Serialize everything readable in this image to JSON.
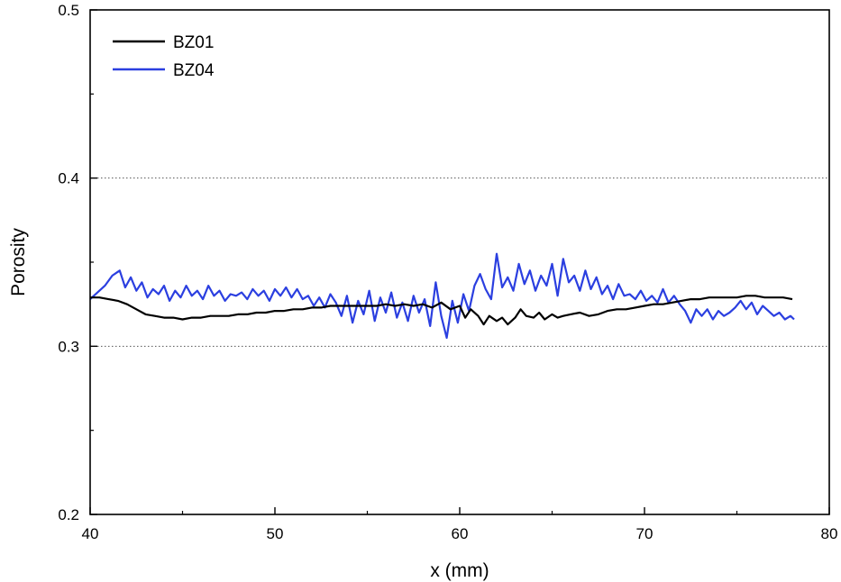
{
  "chart_data": {
    "type": "line",
    "title": "",
    "xlabel": "x (mm)",
    "ylabel": "Porosity",
    "xlim": [
      40,
      80
    ],
    "ylim": [
      0.2,
      0.5
    ],
    "x_ticks": [
      40,
      50,
      60,
      70,
      80
    ],
    "y_ticks": [
      0.2,
      0.3,
      0.4,
      0.5
    ],
    "x_tick_labels": [
      "40",
      "50",
      "60",
      "70",
      "80"
    ],
    "y_tick_labels": [
      "0.2",
      "0.3",
      "0.4",
      "0.5"
    ],
    "grid": "dotted horizontal at 0.3 and 0.4",
    "legend_position": "top-left",
    "series": [
      {
        "name": "BZ01",
        "color": "#000000",
        "x": [
          40.0,
          40.5,
          41.0,
          41.5,
          42.0,
          42.5,
          43.0,
          43.5,
          44.0,
          44.5,
          45.0,
          45.5,
          46.0,
          46.5,
          47.0,
          47.5,
          48.0,
          48.5,
          49.0,
          49.5,
          50.0,
          50.5,
          51.0,
          51.5,
          52.0,
          52.5,
          53.0,
          53.5,
          54.0,
          54.5,
          55.0,
          55.5,
          56.0,
          56.5,
          57.0,
          57.5,
          58.0,
          58.5,
          59.0,
          59.5,
          60.0,
          60.3,
          60.6,
          61.0,
          61.3,
          61.6,
          62.0,
          62.3,
          62.6,
          63.0,
          63.3,
          63.6,
          64.0,
          64.3,
          64.6,
          65.0,
          65.3,
          65.6,
          66.0,
          66.5,
          67.0,
          67.5,
          68.0,
          68.5,
          69.0,
          69.5,
          70.0,
          70.5,
          71.0,
          71.5,
          72.0,
          72.5,
          73.0,
          73.5,
          74.0,
          74.5,
          75.0,
          75.5,
          76.0,
          76.5,
          77.0,
          77.5,
          78.0
        ],
        "y": [
          0.329,
          0.329,
          0.328,
          0.327,
          0.325,
          0.322,
          0.319,
          0.318,
          0.317,
          0.317,
          0.316,
          0.317,
          0.317,
          0.318,
          0.318,
          0.318,
          0.319,
          0.319,
          0.32,
          0.32,
          0.321,
          0.321,
          0.322,
          0.322,
          0.323,
          0.323,
          0.324,
          0.324,
          0.324,
          0.324,
          0.324,
          0.324,
          0.325,
          0.324,
          0.325,
          0.324,
          0.325,
          0.323,
          0.326,
          0.322,
          0.324,
          0.317,
          0.322,
          0.318,
          0.313,
          0.318,
          0.315,
          0.317,
          0.313,
          0.317,
          0.322,
          0.318,
          0.317,
          0.32,
          0.316,
          0.319,
          0.317,
          0.318,
          0.319,
          0.32,
          0.318,
          0.319,
          0.321,
          0.322,
          0.322,
          0.323,
          0.324,
          0.325,
          0.325,
          0.326,
          0.327,
          0.328,
          0.328,
          0.329,
          0.329,
          0.329,
          0.329,
          0.33,
          0.33,
          0.329,
          0.329,
          0.329,
          0.328
        ]
      },
      {
        "name": "BZ04",
        "color": "#2b3fe0",
        "x": [
          40.0,
          40.4,
          40.8,
          41.2,
          41.6,
          41.9,
          42.2,
          42.5,
          42.8,
          43.1,
          43.4,
          43.7,
          44.0,
          44.3,
          44.6,
          44.9,
          45.2,
          45.5,
          45.8,
          46.1,
          46.4,
          46.7,
          47.0,
          47.3,
          47.6,
          47.9,
          48.2,
          48.5,
          48.8,
          49.1,
          49.4,
          49.7,
          50.0,
          50.3,
          50.6,
          50.9,
          51.2,
          51.5,
          51.8,
          52.1,
          52.4,
          52.7,
          53.0,
          53.3,
          53.6,
          53.9,
          54.2,
          54.5,
          54.8,
          55.1,
          55.4,
          55.7,
          56.0,
          56.3,
          56.6,
          56.9,
          57.2,
          57.5,
          57.8,
          58.1,
          58.4,
          58.7,
          59.0,
          59.3,
          59.6,
          59.9,
          60.2,
          60.5,
          60.8,
          61.1,
          61.4,
          61.7,
          62.0,
          62.3,
          62.6,
          62.9,
          63.2,
          63.5,
          63.8,
          64.1,
          64.4,
          64.7,
          65.0,
          65.3,
          65.6,
          65.9,
          66.2,
          66.5,
          66.8,
          67.1,
          67.4,
          67.7,
          68.0,
          68.3,
          68.6,
          68.9,
          69.2,
          69.5,
          69.8,
          70.1,
          70.4,
          70.7,
          71.0,
          71.3,
          71.6,
          71.9,
          72.2,
          72.5,
          72.8,
          73.1,
          73.4,
          73.7,
          74.0,
          74.3,
          74.6,
          74.9,
          75.2,
          75.5,
          75.8,
          76.1,
          76.4,
          76.7,
          77.0,
          77.3,
          77.6,
          77.9,
          78.1
        ],
        "y": [
          0.328,
          0.332,
          0.336,
          0.342,
          0.345,
          0.335,
          0.341,
          0.333,
          0.338,
          0.329,
          0.334,
          0.331,
          0.336,
          0.327,
          0.333,
          0.329,
          0.336,
          0.33,
          0.333,
          0.328,
          0.336,
          0.33,
          0.333,
          0.327,
          0.331,
          0.33,
          0.332,
          0.328,
          0.334,
          0.33,
          0.333,
          0.327,
          0.334,
          0.33,
          0.335,
          0.329,
          0.334,
          0.328,
          0.33,
          0.324,
          0.329,
          0.323,
          0.331,
          0.326,
          0.318,
          0.33,
          0.314,
          0.327,
          0.319,
          0.333,
          0.315,
          0.329,
          0.32,
          0.332,
          0.317,
          0.326,
          0.315,
          0.33,
          0.32,
          0.328,
          0.312,
          0.338,
          0.318,
          0.305,
          0.327,
          0.314,
          0.331,
          0.321,
          0.336,
          0.343,
          0.334,
          0.328,
          0.355,
          0.335,
          0.341,
          0.333,
          0.349,
          0.337,
          0.345,
          0.333,
          0.342,
          0.336,
          0.349,
          0.33,
          0.352,
          0.338,
          0.342,
          0.333,
          0.345,
          0.334,
          0.341,
          0.331,
          0.336,
          0.328,
          0.337,
          0.33,
          0.331,
          0.328,
          0.333,
          0.327,
          0.33,
          0.326,
          0.334,
          0.326,
          0.33,
          0.325,
          0.321,
          0.314,
          0.322,
          0.318,
          0.322,
          0.316,
          0.321,
          0.318,
          0.32,
          0.323,
          0.327,
          0.322,
          0.326,
          0.319,
          0.324,
          0.321,
          0.318,
          0.32,
          0.316,
          0.318,
          0.316
        ]
      }
    ]
  }
}
